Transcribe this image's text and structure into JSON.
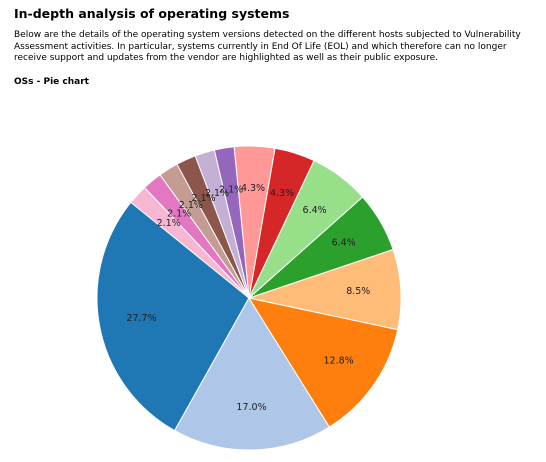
{
  "report": {
    "title": "In-depth analysis of operating systems",
    "intro": "Below are the details of the operating system versions detected on the different hosts subjected to Vulnerability Assessment activities. In particular, systems currently in End Of Life (EOL) and which therefore can no longer receive support and updates from the vendor are highlighted as well as their public exposure.",
    "section_title": "OSs - Pie chart"
  },
  "chart_data": {
    "type": "pie",
    "title": "",
    "start_angle_deg": 141,
    "direction": "counterclockwise",
    "slices": [
      {
        "label": "27.7%",
        "value": 27.7,
        "color": "#1f77b4"
      },
      {
        "label": "17.0%",
        "value": 17.0,
        "color": "#aec7e8"
      },
      {
        "label": "12.8%",
        "value": 12.8,
        "color": "#ff7f0e"
      },
      {
        "label": "8.5%",
        "value": 8.5,
        "color": "#ffbb78"
      },
      {
        "label": "6.4%",
        "value": 6.4,
        "color": "#2ca02c"
      },
      {
        "label": "6.4%",
        "value": 6.4,
        "color": "#98df8a"
      },
      {
        "label": "4.3%",
        "value": 4.3,
        "color": "#d62728"
      },
      {
        "label": "4.3%",
        "value": 4.3,
        "color": "#ff9896"
      },
      {
        "label": "2.1%",
        "value": 2.1,
        "color": "#9467bd"
      },
      {
        "label": "2.1%",
        "value": 2.1,
        "color": "#c5b0d5"
      },
      {
        "label": "2.1%",
        "value": 2.1,
        "color": "#8c564b"
      },
      {
        "label": "2.1%",
        "value": 2.1,
        "color": "#c49c94"
      },
      {
        "label": "2.1%",
        "value": 2.1,
        "color": "#e377c2"
      },
      {
        "label": "2.1%",
        "value": 2.1,
        "color": "#f7b6d2"
      }
    ]
  }
}
